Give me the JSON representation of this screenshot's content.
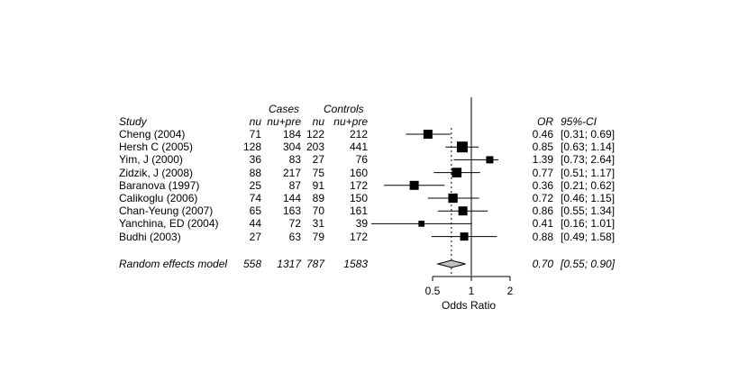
{
  "chart_data": {
    "type": "forest",
    "headers": {
      "cases": "Cases",
      "controls": "Controls",
      "study": "Study",
      "cases_events": "nu",
      "cases_total": "nu+pre",
      "controls_events": "nu",
      "controls_total": "nu+pre",
      "or": "OR",
      "ci": "95%-CI"
    },
    "studies": [
      {
        "name": "Cheng (2004)",
        "cases_n": "71",
        "cases_total": "184",
        "controls_n": "122",
        "controls_total": "212",
        "or": 0.46,
        "lo": 0.31,
        "hi": 0.69,
        "or_text": "0.46",
        "ci_text": "[0.31; 0.69]",
        "weight": 3
      },
      {
        "name": "Hersh C (2005)",
        "cases_n": "128",
        "cases_total": "304",
        "controls_n": "203",
        "controls_total": "441",
        "or": 0.85,
        "lo": 0.63,
        "hi": 1.14,
        "or_text": "0.85",
        "ci_text": "[0.63; 1.14]",
        "weight": 3.6
      },
      {
        "name": "Yim, J (2000)",
        "cases_n": "36",
        "cases_total": "83",
        "controls_n": "27",
        "controls_total": "76",
        "or": 1.39,
        "lo": 0.73,
        "hi": 2.64,
        "or_text": "1.39",
        "ci_text": "[0.73; 2.64]",
        "weight": 2.4
      },
      {
        "name": "Zidzik, J (2008)",
        "cases_n": "88",
        "cases_total": "217",
        "controls_n": "75",
        "controls_total": "160",
        "or": 0.77,
        "lo": 0.51,
        "hi": 1.17,
        "or_text": "0.77",
        "ci_text": "[0.51; 1.17]",
        "weight": 3.2
      },
      {
        "name": "Baranova (1997)",
        "cases_n": "25",
        "cases_total": "87",
        "controls_n": "91",
        "controls_total": "172",
        "or": 0.36,
        "lo": 0.21,
        "hi": 0.62,
        "or_text": "0.36",
        "ci_text": "[0.21; 0.62]",
        "weight": 3
      },
      {
        "name": "Calikoglu (2006)",
        "cases_n": "74",
        "cases_total": "144",
        "controls_n": "89",
        "controls_total": "150",
        "or": 0.72,
        "lo": 0.46,
        "hi": 1.15,
        "or_text": "0.72",
        "ci_text": "[0.46; 1.15]",
        "weight": 3.1
      },
      {
        "name": "Chan-Yeung (2007)",
        "cases_n": "65",
        "cases_total": "163",
        "controls_n": "70",
        "controls_total": "161",
        "or": 0.86,
        "lo": 0.55,
        "hi": 1.34,
        "or_text": "0.86",
        "ci_text": "[0.55; 1.34]",
        "weight": 3
      },
      {
        "name": "Yanchina, ED (2004)",
        "cases_n": "44",
        "cases_total": "72",
        "controls_n": "31",
        "controls_total": "39",
        "or": 0.41,
        "lo": 0.16,
        "hi": 1.01,
        "or_text": "0.41",
        "ci_text": "[0.16; 1.01]",
        "weight": 2
      },
      {
        "name": "Budhi (2003)",
        "cases_n": "27",
        "cases_total": "63",
        "controls_n": "79",
        "controls_total": "172",
        "or": 0.88,
        "lo": 0.49,
        "hi": 1.58,
        "or_text": "0.88",
        "ci_text": "[0.49; 1.58]",
        "weight": 2.7
      }
    ],
    "pooled": {
      "name": "Random effects model",
      "cases_n": "558",
      "cases_total": "1317",
      "controls_n": "787",
      "controls_total": "1583",
      "or": 0.7,
      "lo": 0.55,
      "hi": 0.9,
      "or_text": "0.70",
      "ci_text": "[0.55; 0.90]"
    },
    "x_scale": "log",
    "xlim": [
      0.1,
      10
    ],
    "x_ticks": [
      0.5,
      1,
      2
    ],
    "x_tick_labels": [
      "0.5",
      "1",
      "2"
    ],
    "xlabel": "Odds Ratio",
    "reference_line": 1,
    "colors": {
      "square": "#000000",
      "diamond": "#c0c0c0",
      "line": "#000000"
    }
  }
}
